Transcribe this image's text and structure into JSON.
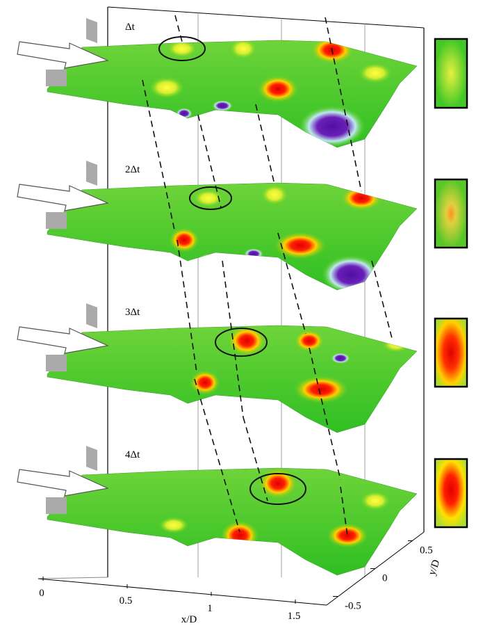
{
  "panels": [
    {
      "label": "Δt"
    },
    {
      "label": "2Δt"
    },
    {
      "label": "3Δt"
    },
    {
      "label": "4Δt"
    }
  ],
  "x_axis": {
    "label": "x/D",
    "ticks": [
      0,
      0.5,
      1,
      1.5
    ]
  },
  "y_axis": {
    "label": "y/D",
    "ticks": [
      -0.5,
      0,
      0.5
    ]
  }
}
